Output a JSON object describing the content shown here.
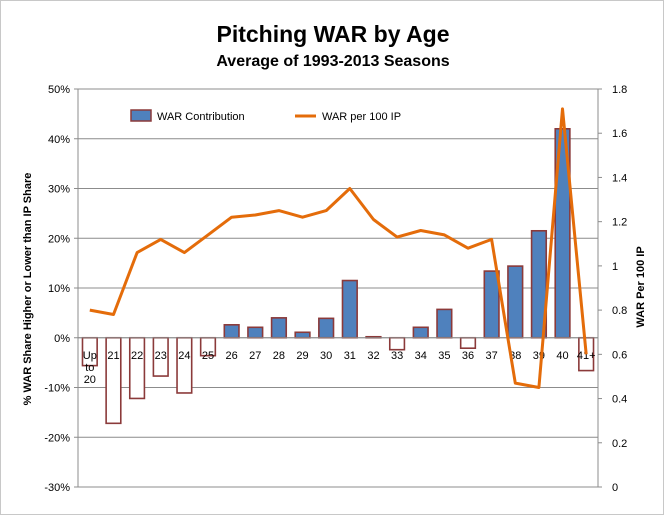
{
  "chart_data": {
    "type": "bar",
    "title": "Pitching WAR by Age",
    "subtitle": "Average of 1993-2013 Seasons",
    "ylabel": "% WAR Share Higher or Lower than IP Share",
    "y2label": "WAR Per 100 IP",
    "categories": [
      "Up to 20",
      "21",
      "22",
      "23",
      "24",
      "25",
      "26",
      "27",
      "28",
      "29",
      "30",
      "31",
      "32",
      "33",
      "34",
      "35",
      "36",
      "37",
      "38",
      "39",
      "40",
      "41+"
    ],
    "ylim": [
      -30,
      50
    ],
    "y_ticks": [
      -30,
      -20,
      -10,
      0,
      10,
      20,
      30,
      40,
      50
    ],
    "y_tick_labels": [
      "-30%",
      "-20%",
      "-10%",
      "0%",
      "10%",
      "20%",
      "30%",
      "40%",
      "50%"
    ],
    "y2lim": [
      0,
      1.8
    ],
    "y2_ticks": [
      0,
      0.2,
      0.4,
      0.6,
      0.8,
      1,
      1.2,
      1.4,
      1.6,
      1.8
    ],
    "y2_tick_labels": [
      "0",
      "0.2",
      "0.4",
      "0.6",
      "0.8",
      "1",
      "1.2",
      "1.4",
      "1.6",
      "1.8"
    ],
    "legend_position": "top-left inside plot",
    "grid": true,
    "series": [
      {
        "name": "WAR Contribution",
        "type": "bar",
        "axis": "left",
        "values": [
          -5.6,
          -17.2,
          -12.2,
          -7.7,
          -11.1,
          -3.6,
          2.6,
          2.1,
          4.0,
          1.1,
          3.9,
          11.5,
          0.2,
          -2.4,
          2.1,
          5.7,
          -2.1,
          13.4,
          14.4,
          21.5,
          42,
          -6.6
        ],
        "positive_fill": "#4f81bd",
        "negative_fill": "#ffffff",
        "border": "#8b3a3a"
      },
      {
        "name": "WAR per 100 IP",
        "type": "line",
        "axis": "right",
        "values": [
          0.8,
          0.78,
          1.06,
          1.12,
          1.06,
          1.14,
          1.22,
          1.23,
          1.25,
          1.22,
          1.25,
          1.35,
          1.21,
          1.13,
          1.16,
          1.14,
          1.08,
          1.12,
          0.47,
          0.45,
          1.71,
          0.6
        ],
        "color": "#e46c0a"
      }
    ]
  }
}
